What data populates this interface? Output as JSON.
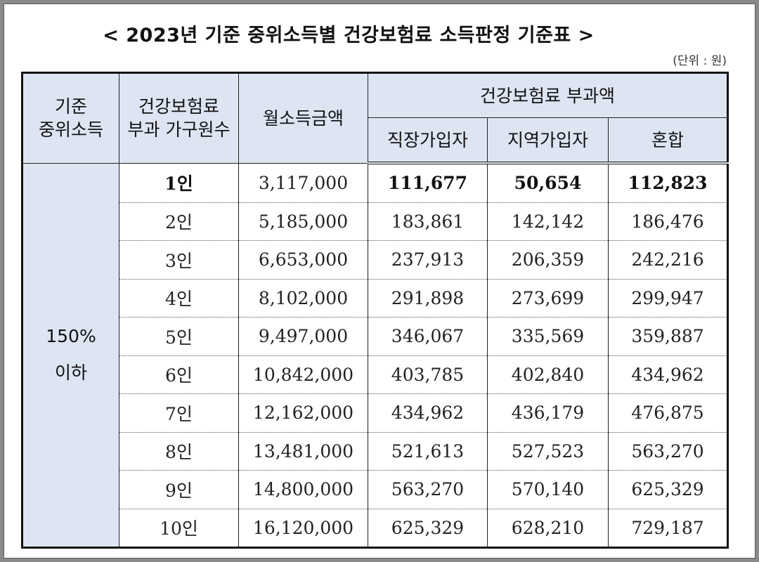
{
  "title": "< 2023년 기준 중위소득별 건강보험료 소득판정 기준표 >",
  "unit": "(단위 : 원)",
  "headers": {
    "median": "기준\n중위소득",
    "household": "건강보험료\n부과 가구원수",
    "income": "월소득금액",
    "premium": "건강보험료 부과액",
    "workplace": "직장가입자",
    "regional": "지역가입자",
    "mixed": "혼합"
  },
  "group_label": "150%\n이하",
  "rows": [
    {
      "members": "1인",
      "income": "3,117,000",
      "workplace": "111,677",
      "regional": "50,654",
      "mixed": "112,823"
    },
    {
      "members": "2인",
      "income": "5,185,000",
      "workplace": "183,861",
      "regional": "142,142",
      "mixed": "186,476"
    },
    {
      "members": "3인",
      "income": "6,653,000",
      "workplace": "237,913",
      "regional": "206,359",
      "mixed": "242,216"
    },
    {
      "members": "4인",
      "income": "8,102,000",
      "workplace": "291,898",
      "regional": "273,699",
      "mixed": "299,947"
    },
    {
      "members": "5인",
      "income": "9,497,000",
      "workplace": "346,067",
      "regional": "335,569",
      "mixed": "359,887"
    },
    {
      "members": "6인",
      "income": "10,842,000",
      "workplace": "403,785",
      "regional": "402,840",
      "mixed": "434,962"
    },
    {
      "members": "7인",
      "income": "12,162,000",
      "workplace": "434,962",
      "regional": "436,179",
      "mixed": "476,875"
    },
    {
      "members": "8인",
      "income": "13,481,000",
      "workplace": "521,613",
      "regional": "527,523",
      "mixed": "563,270"
    },
    {
      "members": "9인",
      "income": "14,800,000",
      "workplace": "563,270",
      "regional": "570,140",
      "mixed": "625,329"
    },
    {
      "members": "10인",
      "income": "16,120,000",
      "workplace": "625,329",
      "regional": "628,210",
      "mixed": "729,187"
    }
  ]
}
